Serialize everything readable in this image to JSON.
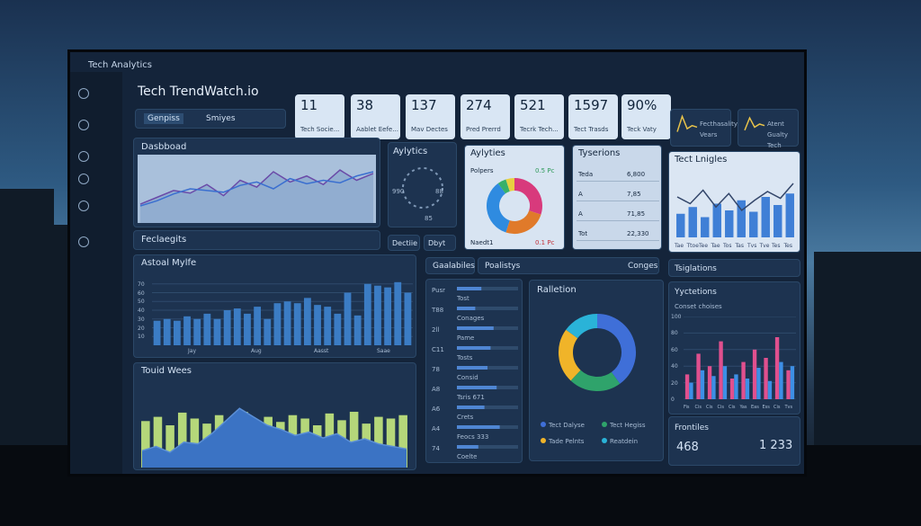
{
  "window_title": "Tech Analytics",
  "header": {
    "title": "Tech TrendWatch.io",
    "tabs": [
      "Genpiss",
      "Smiyes"
    ]
  },
  "kpis": [
    {
      "value": "11",
      "label": "Tech Socie..."
    },
    {
      "value": "38",
      "label": "Aablet Eefe..."
    },
    {
      "value": "137",
      "label": "Mav Dectes"
    },
    {
      "value": "274",
      "label": "Pred Prerrd"
    },
    {
      "value": "521",
      "label": "Tecrk Tech..."
    },
    {
      "value": "1597",
      "label": "Tect Trasds"
    },
    {
      "value": "90%",
      "label": "Teck Vaty"
    }
  ],
  "mini_cards": [
    {
      "label": "Fecthasality Vears",
      "values": [
        10,
        60,
        20,
        30,
        25
      ],
      "color": "#e8c34a"
    },
    {
      "label": "Atent Gualty Tech",
      "values": [
        15,
        55,
        25,
        35,
        30
      ],
      "color": "#e8c34a"
    }
  ],
  "dashboard": {
    "title": "Dasbboad",
    "ylim": [
      0,
      80
    ],
    "series": [
      {
        "color": "#6a4aa8",
        "values": [
          22,
          30,
          38,
          35,
          45,
          32,
          50,
          42,
          60,
          48,
          55,
          45,
          62,
          50,
          58
        ]
      },
      {
        "color": "#3a6fd0",
        "values": [
          20,
          26,
          34,
          40,
          38,
          36,
          44,
          48,
          40,
          52,
          46,
          50,
          47,
          55,
          60
        ]
      }
    ]
  },
  "analytics": {
    "title": "Aylytics",
    "labels": [
      "990",
      "88",
      "85"
    ]
  },
  "share": {
    "title": "Aylyties",
    "subtitle": "Polpers",
    "note": "0.5 Pc",
    "footer": "Naedt1",
    "footer_value": "0.1 Pc",
    "slices": [
      {
        "value": 30,
        "color": "#d83a7c"
      },
      {
        "value": 25,
        "color": "#e07a2a"
      },
      {
        "value": 35,
        "color": "#2f8be0"
      },
      {
        "value": 5,
        "color": "#38b06a"
      },
      {
        "value": 5,
        "color": "#e8d040"
      }
    ]
  },
  "expenses": {
    "title": "Tyserions",
    "rows": [
      {
        "label": "Teda",
        "value": "6,800"
      },
      {
        "label": "A",
        "value": "7,85"
      },
      {
        "label": "A",
        "value": "71,85"
      },
      {
        "label": "Tot",
        "value": "22,330"
      }
    ]
  },
  "trends": {
    "title": "Tect Lnigles",
    "ylim": [
      0,
      100
    ],
    "categories": [
      "Tae",
      "Ttoe",
      "Tee",
      "Tae",
      "Tos",
      "Tas",
      "Tvs",
      "Tve",
      "Tes",
      "Tes"
    ],
    "bars": [
      35,
      45,
      30,
      50,
      40,
      55,
      38,
      60,
      48,
      65
    ],
    "line": [
      60,
      50,
      70,
      45,
      65,
      40,
      55,
      68,
      58,
      80
    ],
    "bar_color": "#3f7fd6",
    "line_color": "#e6eefa"
  },
  "segments": {
    "label": "Feclaegits",
    "buttons": [
      "Dectiie",
      "Dbyt"
    ]
  },
  "annual": {
    "title": "Astoal Mylfe",
    "ylim": [
      0,
      80
    ],
    "yticks": [
      10,
      20,
      30,
      40,
      50,
      60,
      70
    ],
    "categories": [
      "Jay",
      "Aug",
      "Aasst",
      "Saae"
    ],
    "values": [
      28,
      30,
      28,
      33,
      30,
      36,
      30,
      40,
      42,
      36,
      44,
      30,
      48,
      50,
      48,
      54,
      46,
      44,
      36,
      60,
      34,
      70,
      68,
      66,
      72,
      60
    ],
    "color": "#3b7cc4"
  },
  "waves": {
    "title": "Touid Wees",
    "ylim": [
      0,
      100
    ],
    "bars": [
      55,
      60,
      50,
      65,
      58,
      52,
      62,
      48,
      66,
      56,
      60,
      54,
      62,
      58,
      50,
      64,
      56,
      66,
      52,
      60,
      58,
      62
    ],
    "bar_color": "#b5d77a",
    "area": [
      20,
      25,
      18,
      30,
      28,
      40,
      55,
      70,
      60,
      50,
      45,
      38,
      42,
      35,
      40,
      30,
      34,
      28,
      25,
      22
    ],
    "area_color": "#3b73c4"
  },
  "filters": {
    "headers": [
      "Gaalabiles",
      "Poalistys",
      "Conges"
    ],
    "items": [
      {
        "code": "Pusr",
        "text": "Tost",
        "progress": 40
      },
      {
        "code": "T88",
        "text": "Conages",
        "progress": 30
      },
      {
        "code": "2ll",
        "text": "Pame",
        "progress": 60
      },
      {
        "code": "C11",
        "text": "Tosts",
        "progress": 55
      },
      {
        "code": "78",
        "text": "Consid",
        "progress": 50
      },
      {
        "code": "A8",
        "text": "Tsris 671",
        "progress": 65
      },
      {
        "code": "A6",
        "text": "Crets",
        "progress": 45
      },
      {
        "code": "A4",
        "text": "Feocs 333",
        "progress": 70
      },
      {
        "code": "74",
        "text": "Coelte",
        "progress": 35
      }
    ]
  },
  "relation": {
    "title": "Ralletion",
    "slices": [
      {
        "name": "Tect Dalyse",
        "value": 40,
        "color": "#3f6fd8"
      },
      {
        "name": "Tect Hegiss",
        "value": 22,
        "color": "#2fa36b"
      },
      {
        "name": "Tade Pelnts",
        "value": 23,
        "color": "#f0b429"
      },
      {
        "name": "Reatdein",
        "value": 15,
        "color": "#2ab3d8"
      }
    ]
  },
  "right": {
    "header": "Tsiglations",
    "title": "Yyctetions",
    "subtitle": "Conset choises",
    "ylim": [
      0,
      100
    ],
    "yticks": [
      0,
      20,
      40,
      60,
      80,
      100
    ],
    "categories": [
      "Fis",
      "Cis",
      "Cis",
      "Cis",
      "Cis",
      "Yas",
      "Eas",
      "Ess",
      "Cis",
      "Tvs"
    ],
    "series": [
      {
        "color": "#e0508e",
        "values": [
          30,
          55,
          40,
          70,
          25,
          45,
          60,
          50,
          75,
          35
        ]
      },
      {
        "color": "#3d8fe6",
        "values": [
          20,
          35,
          28,
          40,
          30,
          25,
          38,
          22,
          45,
          40
        ]
      }
    ],
    "footer_title": "Frontiles",
    "footer_values": [
      "468",
      "1 233"
    ]
  }
}
